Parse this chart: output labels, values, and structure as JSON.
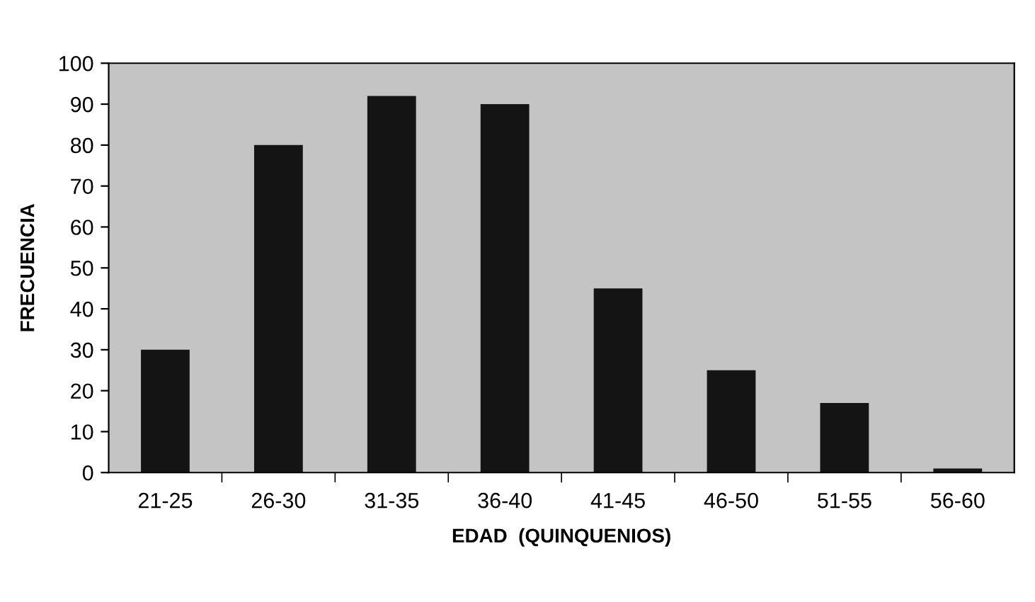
{
  "chart_data": {
    "type": "bar",
    "xlabel": "EDAD  (QUINQUENIOS)",
    "ylabel": "FRECUENCIA",
    "categories": [
      "21-25",
      "26-30",
      "31-35",
      "36-40",
      "41-45",
      "46-50",
      "51-55",
      "56-60"
    ],
    "values": [
      30,
      80,
      92,
      90,
      45,
      25,
      17,
      1
    ],
    "color": "#141414",
    "ylim": [
      0,
      100
    ],
    "yticks": [
      0,
      10,
      20,
      30,
      40,
      50,
      60,
      70,
      80,
      90,
      100
    ],
    "grid": false
  }
}
